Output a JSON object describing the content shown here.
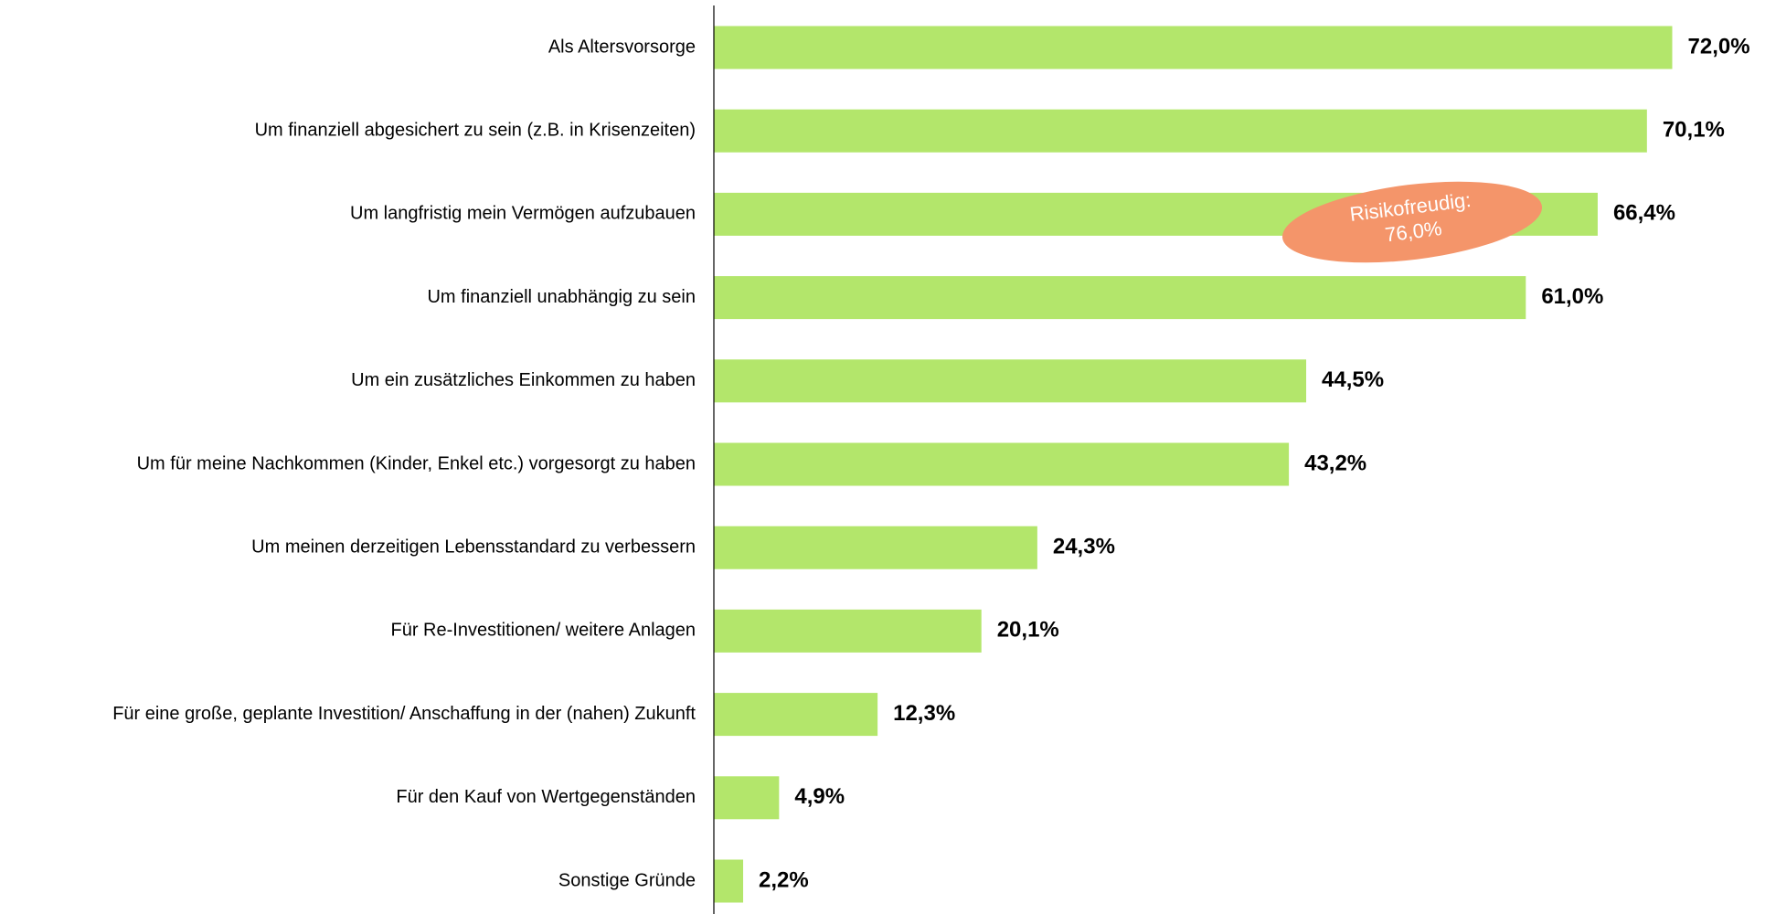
{
  "chart_data": {
    "type": "bar",
    "orientation": "horizontal",
    "categories": [
      "Als Altersvorsorge",
      "Um finanziell abgesichert zu sein (z.B. in Krisenzeiten)",
      "Um langfristig mein Vermögen aufzubauen",
      "Um finanziell unabhängig zu sein",
      "Um ein zusätzliches Einkommen zu haben",
      "Um für meine Nachkommen (Kinder, Enkel etc.) vorgesorgt zu haben",
      "Um meinen derzeitigen Lebensstandard zu verbessern",
      "Für Re-Investitionen/ weitere Anlagen",
      "Für eine große, geplante Investition/ Anschaffung in der (nahen) Zukunft",
      "Für den Kauf von Wertgegenständen",
      "Sonstige Gründe"
    ],
    "values": [
      72.0,
      70.1,
      66.4,
      61.0,
      44.5,
      43.2,
      24.3,
      20.1,
      12.3,
      4.9,
      2.2
    ],
    "value_labels": [
      "72,0%",
      "70,1%",
      "66,4%",
      "61,0%",
      "44,5%",
      "43,2%",
      "24,3%",
      "20,1%",
      "12,3%",
      "4,9%",
      "2,2%"
    ],
    "color": "#b3e66b",
    "xlim": [
      0,
      80
    ],
    "annotation": {
      "lines": [
        "Risikofreudig:",
        "76,0%"
      ],
      "color": "#f4956a"
    }
  }
}
